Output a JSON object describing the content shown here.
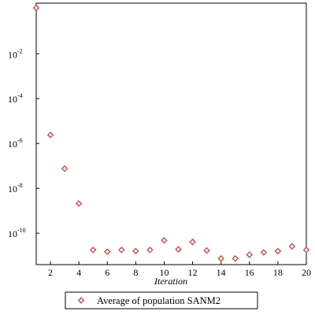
{
  "chart_data": {
    "type": "scatter",
    "xlabel": "Iteration",
    "ylabel": "",
    "xlim": [
      1,
      20
    ],
    "ylim": [
      4e-12,
      1.8
    ],
    "yscale": "log",
    "xticks": [
      2,
      4,
      6,
      8,
      10,
      12,
      14,
      16,
      18,
      20
    ],
    "xtick_labels": [
      "2",
      "4",
      "6",
      "8",
      "10",
      "12",
      "14",
      "16",
      "18",
      "20"
    ],
    "yticks": [
      {
        "value": 0.01,
        "base": "10",
        "exp": "-2"
      },
      {
        "value": 0.0001,
        "base": "10",
        "exp": "-4"
      },
      {
        "value": 1e-06,
        "base": "10",
        "exp": "-6"
      },
      {
        "value": 1e-08,
        "base": "10",
        "exp": "-8"
      },
      {
        "value": 1e-10,
        "base": "10",
        "exp": "-10"
      }
    ],
    "grid": false,
    "legend_position": "bottom-center",
    "marker": "diamond",
    "marker_color": "#c0504d",
    "series": [
      {
        "name": "Average of population SANM2",
        "x": [
          1,
          2,
          3,
          4,
          5,
          6,
          7,
          8,
          9,
          10,
          11,
          12,
          13,
          14,
          15,
          16,
          17,
          18,
          19,
          20
        ],
        "y": [
          1.1,
          2.4e-06,
          7.6e-08,
          2.1e-09,
          1.8e-11,
          1.5e-11,
          1.8e-11,
          1.6e-11,
          1.8e-11,
          4.8e-11,
          1.9e-11,
          4.1e-11,
          1.7e-11,
          7.5e-12,
          7.5e-12,
          1.1e-11,
          1.4e-11,
          1.6e-11,
          2.6e-11,
          1.8e-11
        ]
      }
    ]
  }
}
